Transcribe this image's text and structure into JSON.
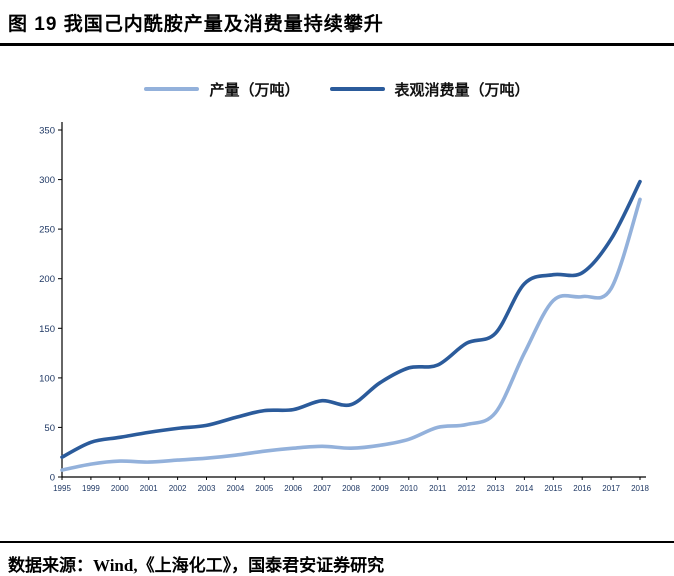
{
  "header": {
    "title": "图 19 我国己内酰胺产量及消费量持续攀升"
  },
  "footer": {
    "source": "数据来源：Wind,《上海化工》，国泰君安证券研究"
  },
  "colors": {
    "production_line": "#93B1DB",
    "consumption_line": "#2B5B9B",
    "axis": "#000000",
    "tick_text": "#1F3864"
  },
  "chart_data": {
    "type": "line",
    "title": "",
    "xlabel": "",
    "ylabel": "",
    "grid": false,
    "legend_position": "top",
    "ylim": [
      0,
      350
    ],
    "y_ticks": [
      0,
      50,
      100,
      150,
      200,
      250,
      300,
      350
    ],
    "categories": [
      "1995",
      "1999",
      "2000",
      "2001",
      "2002",
      "2003",
      "2004",
      "2005",
      "2006",
      "2007",
      "2008",
      "2009",
      "2010",
      "2011",
      "2012",
      "2013",
      "2014",
      "2015",
      "2016",
      "2017",
      "2018"
    ],
    "series": [
      {
        "name": "产量（万吨）",
        "color": "#93B1DB",
        "values": [
          7,
          13,
          16,
          15,
          17,
          19,
          22,
          26,
          29,
          31,
          29,
          32,
          38,
          50,
          53,
          65,
          125,
          178,
          182,
          190,
          280
        ]
      },
      {
        "name": "表观消费量（万吨）",
        "color": "#2B5B9B",
        "values": [
          20,
          35,
          40,
          45,
          49,
          52,
          60,
          67,
          68,
          77,
          73,
          95,
          110,
          113,
          135,
          145,
          195,
          204,
          206,
          240,
          298
        ]
      }
    ]
  }
}
